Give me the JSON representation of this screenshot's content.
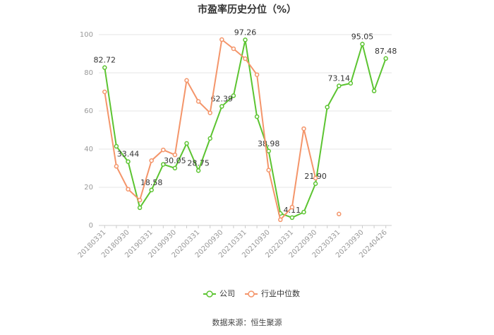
{
  "chart_data": {
    "type": "line",
    "title": "市盈率历史分位（%）",
    "categories": [
      "20180331",
      null,
      "20180930",
      null,
      "20190331",
      null,
      "20190930",
      null,
      "20200331",
      null,
      "20200930",
      null,
      "20210331",
      null,
      "20210930",
      null,
      "20220331",
      null,
      "20220930",
      null,
      "20230331",
      null,
      "20230930",
      null,
      "20240426"
    ],
    "series": [
      {
        "name": "公司",
        "color": "#5cc431",
        "values": [
          82.72,
          41.5,
          33.44,
          9.3,
          18.58,
          32,
          30.05,
          43,
          28.75,
          45.6,
          62.39,
          68,
          97.26,
          57,
          38.98,
          6.3,
          4.11,
          7,
          21.9,
          62,
          73.14,
          74.5,
          95.05,
          70.5,
          87.48
        ],
        "value_labels": [
          "82.72",
          null,
          "33.44",
          null,
          "18.58",
          null,
          "30.05",
          null,
          "28.75",
          null,
          "62.39",
          null,
          "97.26",
          null,
          "38.98",
          null,
          "4.11",
          null,
          "21.90",
          null,
          "73.14",
          null,
          "95.05",
          null,
          "87.48"
        ]
      },
      {
        "name": "行业中位数",
        "color": "#f4956a",
        "values": [
          70,
          31,
          19,
          13.3,
          34,
          39.6,
          37,
          76,
          65,
          59,
          97.4,
          92.6,
          87.4,
          79,
          29,
          3,
          9.6,
          50.7,
          24.8,
          null,
          6,
          null,
          null,
          null,
          null
        ]
      }
    ],
    "ylim": [
      0,
      100
    ],
    "yticks": [
      0,
      20,
      40,
      60,
      80,
      100
    ],
    "grid": true,
    "source": "数据来源：恒生聚源"
  }
}
